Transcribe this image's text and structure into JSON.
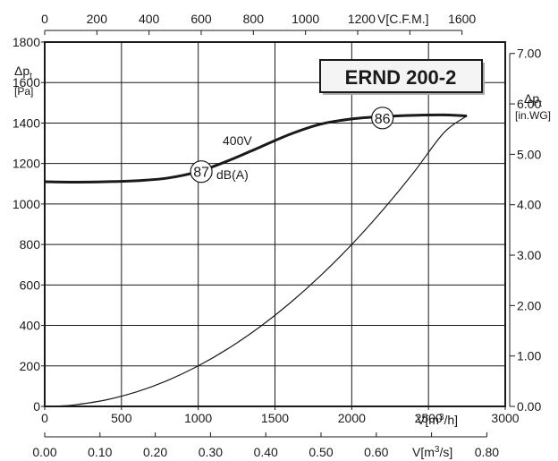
{
  "chart_data": {
    "type": "line",
    "title": "ERND 200-2",
    "x_axis_primary": {
      "label": "V[m³/h]",
      "range": [
        0,
        3000
      ],
      "ticks": [
        0,
        500,
        1000,
        1500,
        2000,
        2500,
        3000
      ]
    },
    "x_axis_secondary_bottom": {
      "label": "V[m³/s]",
      "range": [
        0,
        0.8333
      ],
      "tick_labels": [
        "0.00",
        "0.10",
        "0.20",
        "0.30",
        "0.40",
        "0.50",
        "0.60",
        "0.70",
        "0.80"
      ],
      "tick_values": [
        0,
        0.1,
        0.2,
        0.3,
        0.4,
        0.5,
        0.6,
        0.7,
        0.8
      ]
    },
    "x_axis_top": {
      "label": "V[C.F.M.]",
      "tick_labels": [
        "0",
        "200",
        "400",
        "600",
        "800",
        "1000",
        "1200",
        "1600"
      ],
      "tick_values": [
        0,
        200,
        400,
        600,
        800,
        1000,
        1200,
        1600
      ]
    },
    "y_axis_left": {
      "label": "Δp",
      "label_sub": "t",
      "unit": "[Pa]",
      "range": [
        0,
        1800
      ],
      "ticks": [
        0,
        200,
        400,
        600,
        800,
        1000,
        1200,
        1400,
        1600,
        1800
      ]
    },
    "y_axis_right": {
      "label": "Δp",
      "label_sub": "t",
      "unit": "[in.WG]",
      "tick_labels": [
        "0.00",
        "1.00",
        "2.00",
        "3.00",
        "4.00",
        "5.00",
        "6.00",
        "7.00"
      ],
      "tick_values": [
        0,
        1,
        2,
        3,
        4,
        5,
        6,
        7
      ],
      "pa_per_unit": 249.09
    },
    "grid": true,
    "series": [
      {
        "name": "400V",
        "style": "thick",
        "x": [
          0,
          200,
          400,
          600,
          800,
          1000,
          1200,
          1400,
          1600,
          1800,
          2000,
          2200,
          2400,
          2600,
          2750
        ],
        "y": [
          1110,
          1108,
          1110,
          1115,
          1128,
          1160,
          1215,
          1280,
          1345,
          1395,
          1420,
          1432,
          1438,
          1440,
          1435
        ]
      },
      {
        "name": "",
        "style": "thin",
        "x": [
          100,
          200,
          400,
          600,
          800,
          1000,
          1200,
          1400,
          1600,
          1800,
          2000,
          2200,
          2400,
          2600,
          2750
        ],
        "y": [
          2,
          8,
          32,
          72,
          128,
          200,
          288,
          392,
          512,
          648,
          800,
          968,
          1152,
          1352,
          1435
        ]
      }
    ],
    "annotations": [
      {
        "text": "400V",
        "x": 1300,
        "y": 1295
      },
      {
        "text": "dB(A)",
        "x": 1125,
        "y": 1135
      }
    ],
    "markers": [
      {
        "text": "87",
        "x": 1020,
        "y": 1160
      },
      {
        "text": "86",
        "x": 2200,
        "y": 1425
      }
    ]
  }
}
